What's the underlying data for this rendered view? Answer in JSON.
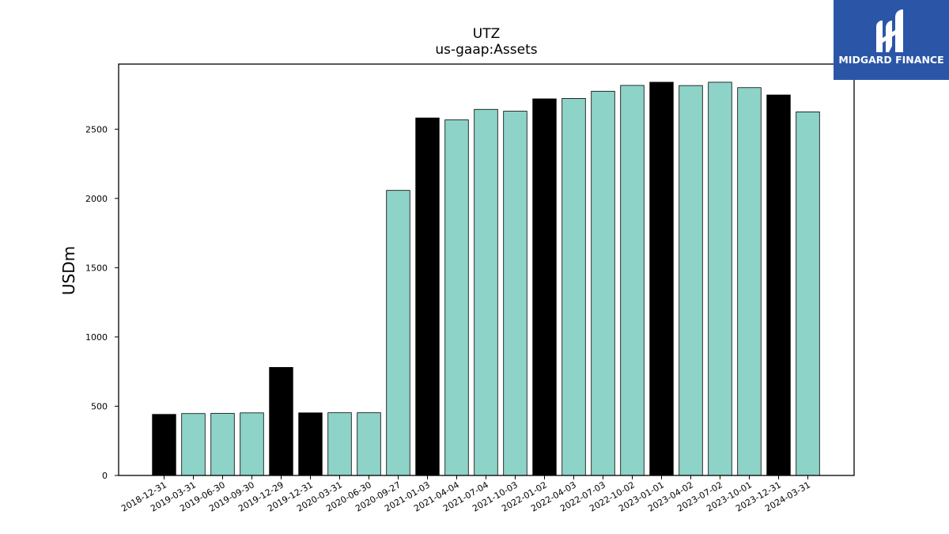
{
  "brand": {
    "name": "MIDGARD FINANCE",
    "bg_color": "#2b56a8",
    "icon": "midgard-logo-icon"
  },
  "chart_data": {
    "type": "bar",
    "title": "UTZ",
    "subtitle": "us-gaap:Assets",
    "xlabel": "",
    "ylabel": "USDm",
    "ylim": [
      0,
      2970
    ],
    "yticks": [
      0,
      500,
      1000,
      1500,
      2000,
      2500
    ],
    "grid": false,
    "colors": {
      "annual": "#000000",
      "quarterly": "#8dd3c7",
      "edge": "#000000"
    },
    "categories": [
      "2018-12-31",
      "2019-03-31",
      "2019-06-30",
      "2019-09-30",
      "2019-12-29",
      "2019-12-31",
      "2020-03-31",
      "2020-06-30",
      "2020-09-27",
      "2021-01-03",
      "2021-04-04",
      "2021-07-04",
      "2021-10-03",
      "2022-01-02",
      "2022-04-03",
      "2022-07-03",
      "2022-10-02",
      "2023-01-01",
      "2023-04-02",
      "2023-07-02",
      "2023-10-01",
      "2023-12-31",
      "2024-03-31"
    ],
    "values": [
      441,
      447,
      448,
      452,
      780,
      452,
      453,
      453,
      2058,
      2581,
      2567,
      2643,
      2630,
      2719,
      2722,
      2774,
      2816,
      2839,
      2815,
      2839,
      2800,
      2747,
      2625
    ],
    "bar_kinds": [
      "annual",
      "quarterly",
      "quarterly",
      "quarterly",
      "annual",
      "annual",
      "quarterly",
      "quarterly",
      "quarterly",
      "annual",
      "quarterly",
      "quarterly",
      "quarterly",
      "annual",
      "quarterly",
      "quarterly",
      "quarterly",
      "annual",
      "quarterly",
      "quarterly",
      "quarterly",
      "annual",
      "quarterly"
    ]
  }
}
